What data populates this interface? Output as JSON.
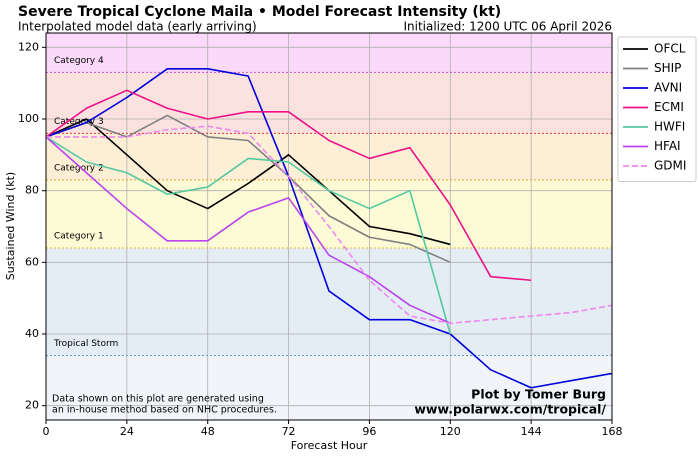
{
  "chart_data": {
    "type": "line",
    "title": "Severe Tropical Cyclone Maila • Model Forecast Intensity (kt)",
    "subtitle": "Interpolated model data (early arriving)",
    "initialized": "Initialized: 1200 UTC 06 April 2026",
    "xlabel": "Forecast Hour",
    "ylabel": "Sustained Wind (kt)",
    "note": [
      "Data shown on this plot are generated using",
      "an in-house method based on NHC procedures."
    ],
    "credit": [
      "Plot by Tomer Burg",
      "www.polarwx.com/tropical/"
    ],
    "x": [
      0,
      12,
      24,
      36,
      48,
      60,
      72,
      84,
      96,
      108,
      120,
      132,
      144,
      156,
      168
    ],
    "xlim": [
      0,
      168
    ],
    "xticks": [
      0,
      24,
      48,
      72,
      96,
      120,
      144,
      168
    ],
    "ylim": [
      16,
      124
    ],
    "yticks": [
      20,
      40,
      60,
      80,
      100,
      120
    ],
    "grid": true,
    "legend": "outside-right",
    "bands": [
      {
        "label": "Tropical Storm",
        "lower": 34,
        "upper": 64,
        "color": "#e4ecf4",
        "line": "#6a9ccc"
      },
      {
        "label": "Category 1",
        "lower": 64,
        "upper": 83,
        "color": "#fdfbd6",
        "line": "#e8c030"
      },
      {
        "label": "Category 2",
        "lower": 83,
        "upper": 96,
        "color": "#fdeed6",
        "line": "#e8a030"
      },
      {
        "label": "Category 3",
        "lower": 96,
        "upper": 113,
        "color": "#fbe2df",
        "line": "#e83a3a"
      },
      {
        "label": "Category 4",
        "lower": 113,
        "upper": 137,
        "color": "#fbd9f8",
        "line": "#d050d0"
      }
    ],
    "series": [
      {
        "name": "OFCL",
        "color": "#000000",
        "values": [
          95,
          100,
          90,
          80,
          75,
          82,
          90,
          80,
          70,
          68,
          65,
          null,
          null,
          null,
          null
        ]
      },
      {
        "name": "SHIP",
        "color": "#808080",
        "values": [
          95,
          99,
          95,
          101,
          95,
          94,
          84,
          73,
          67,
          65,
          60,
          null,
          null,
          null,
          null
        ]
      },
      {
        "name": "AVNI",
        "color": "#0000dd",
        "values": [
          95,
          99,
          106,
          114,
          114,
          112,
          84,
          52,
          44,
          44,
          40,
          30,
          25,
          27,
          29
        ]
      },
      {
        "name": "ECMI",
        "color": "#ee1188",
        "values": [
          95,
          103,
          108,
          103,
          100,
          102,
          102,
          94,
          89,
          92,
          76,
          56,
          55,
          null,
          null
        ]
      },
      {
        "name": "HWFI",
        "color": "#55c8a0",
        "values": [
          95,
          88,
          85,
          79,
          81,
          89,
          88,
          80,
          75,
          80,
          40,
          null,
          null,
          null,
          null
        ]
      },
      {
        "name": "HFAI",
        "color": "#bb44ee",
        "values": [
          95,
          85,
          75,
          66,
          66,
          74,
          78,
          62,
          56,
          48,
          43,
          null,
          null,
          null,
          null
        ]
      },
      {
        "name": "GDMI",
        "color": "#ee88ee",
        "dash": true,
        "values": [
          95,
          95,
          95,
          97,
          98,
          96,
          84,
          70,
          55,
          45,
          43,
          44,
          45,
          46,
          48
        ]
      }
    ]
  }
}
